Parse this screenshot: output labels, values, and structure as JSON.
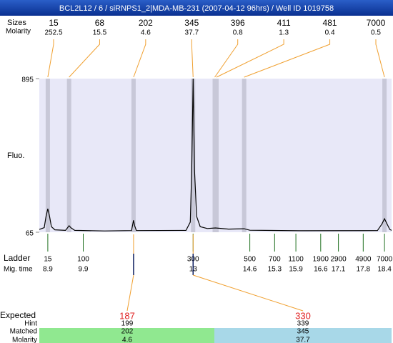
{
  "chart_data": {
    "type": "line",
    "title": "BCL2L12 / 6 / siRNPS1_2|MDA-MB-231 (2007-04-12 96hrs) / Well ID 1019758",
    "sizes_label": "Sizes",
    "molarity_label": "Molarity",
    "ylabel": "Fluo.",
    "ylim": [
      65,
      895
    ],
    "yticks": [
      65,
      895
    ],
    "xlim": [
      8.66,
      18.6
    ],
    "x": [
      8.66,
      8.8,
      8.85,
      8.9,
      8.95,
      9.0,
      9.1,
      9.4,
      9.46,
      9.5,
      9.56,
      9.66,
      10.5,
      11.26,
      11.29,
      11.32,
      11.35,
      11.4,
      12.8,
      12.92,
      12.96,
      13.0,
      13.04,
      13.1,
      13.2,
      13.4,
      13.63,
      14.0,
      14.44,
      14.6,
      16,
      18.2,
      18.33,
      18.4,
      18.47,
      18.55,
      18.6
    ],
    "series": [
      {
        "color": "#000000",
        "values": [
          80,
          90,
          150,
          192,
          150,
          95,
          78,
          75,
          90,
          100,
          88,
          75,
          72,
          74,
          100,
          130,
          100,
          74,
          75,
          120,
          400,
          895,
          400,
          150,
          95,
          85,
          88,
          82,
          84,
          76,
          73,
          74,
          110,
          138,
          110,
          80,
          75
        ]
      }
    ],
    "peaks": {
      "sizes": [
        15,
        68,
        202,
        345,
        396,
        411,
        481,
        7000
      ],
      "molarity": [
        252.5,
        15.5,
        4.6,
        37.7,
        0.8,
        1.3,
        0.4,
        0.5
      ],
      "x": [
        8.9,
        9.5,
        11.32,
        13.0,
        13.61,
        13.66,
        14.44,
        18.4
      ]
    },
    "ladder": {
      "label": "Ladder",
      "time_label": "Mig. time",
      "sizes": [
        15,
        100,
        300,
        500,
        700,
        1100,
        1900,
        2900,
        4900,
        7000
      ],
      "times": [
        8.9,
        9.9,
        13,
        14.6,
        15.3,
        15.9,
        16.6,
        17.1,
        17.8,
        18.4
      ]
    },
    "expected": {
      "label": "Expected",
      "values": [
        187,
        330
      ],
      "hint_label": "Hint",
      "hint": [
        199,
        339
      ],
      "matched_label": "Matched",
      "matched": [
        202,
        345
      ],
      "molarity_label": "Molarity",
      "molarity": [
        4.6,
        37.7
      ]
    }
  }
}
